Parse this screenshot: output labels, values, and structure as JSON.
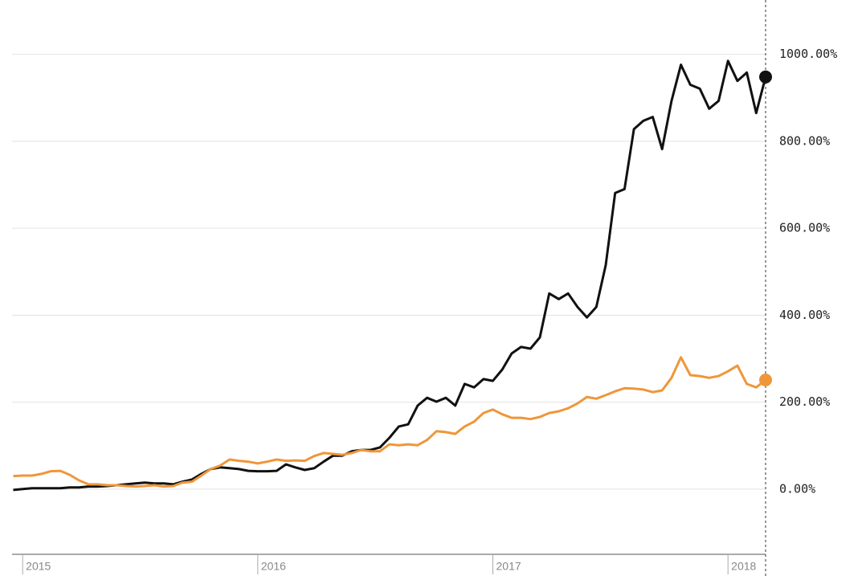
{
  "chart_data": {
    "type": "line",
    "x": [
      2014.96,
      2015,
      2015.04,
      2015.08,
      2015.12,
      2015.16,
      2015.2,
      2015.24,
      2015.28,
      2015.32,
      2015.36,
      2015.4,
      2015.44,
      2015.48,
      2015.52,
      2015.56,
      2015.6,
      2015.64,
      2015.68,
      2015.72,
      2015.76,
      2015.8,
      2015.84,
      2015.88,
      2015.92,
      2015.96,
      2016,
      2016.04,
      2016.08,
      2016.12,
      2016.16,
      2016.2,
      2016.24,
      2016.28,
      2016.32,
      2016.36,
      2016.4,
      2016.44,
      2016.48,
      2016.52,
      2016.56,
      2016.6,
      2016.64,
      2016.68,
      2016.72,
      2016.76,
      2016.8,
      2016.84,
      2016.88,
      2016.92,
      2016.96,
      2017,
      2017.04,
      2017.08,
      2017.12,
      2017.16,
      2017.2,
      2017.24,
      2017.28,
      2017.32,
      2017.36,
      2017.4,
      2017.44,
      2017.48,
      2017.52,
      2017.56,
      2017.6,
      2017.64,
      2017.68,
      2017.72,
      2017.76,
      2017.8,
      2017.84,
      2017.88,
      2017.92,
      2017.96,
      2018,
      2018.04,
      2018.08,
      2018.12,
      2018.16
    ],
    "series": [
      {
        "color": "#111111",
        "values": [
          -2,
          0,
          2,
          2,
          2,
          2,
          4,
          4,
          6,
          6,
          7,
          9,
          11,
          13,
          15,
          13,
          13,
          11,
          17,
          22,
          35,
          46,
          50,
          48,
          46,
          42,
          41,
          41,
          42,
          57,
          50,
          44,
          48,
          63,
          77,
          77,
          87,
          90,
          90,
          96,
          118,
          144,
          149,
          192,
          210,
          201,
          210,
          192,
          242,
          234,
          253,
          249,
          275,
          312,
          327,
          323,
          349,
          450,
          437,
          450,
          419,
          395,
          419,
          515,
          681,
          690,
          828,
          847,
          856,
          782,
          893,
          976,
          930,
          921,
          875,
          893,
          985,
          939,
          958,
          865,
          948
        ]
      },
      {
        "color": "#f0963a",
        "values": [
          30,
          31,
          31,
          35,
          41,
          42,
          33,
          20,
          11,
          11,
          9,
          9,
          7,
          6,
          7,
          9,
          6,
          7,
          15,
          17,
          31,
          46,
          54,
          68,
          65,
          63,
          59,
          63,
          68,
          65,
          66,
          65,
          76,
          83,
          81,
          79,
          83,
          90,
          87,
          87,
          103,
          101,
          103,
          101,
          113,
          133,
          131,
          127,
          144,
          155,
          175,
          183,
          172,
          164,
          164,
          161,
          166,
          175,
          179,
          186,
          197,
          212,
          208,
          216,
          225,
          232,
          231,
          229,
          223,
          227,
          256,
          303,
          262,
          260,
          256,
          260,
          271,
          284,
          242,
          234,
          251
        ]
      }
    ],
    "xlim": [
      2014.955,
      2018.16
    ],
    "xticks": [
      2015,
      2016,
      2017,
      2018
    ],
    "ylim": [
      -150,
      1125
    ],
    "yticks": [
      {
        "value": 0,
        "label": "0.00%"
      },
      {
        "value": 200,
        "label": "200.00%"
      },
      {
        "value": 400,
        "label": "400.00%"
      },
      {
        "value": 600,
        "label": "600.00%"
      },
      {
        "value": 800,
        "label": "800.00%"
      },
      {
        "value": 1000,
        "label": "1000.00%"
      }
    ],
    "grid": true
  }
}
